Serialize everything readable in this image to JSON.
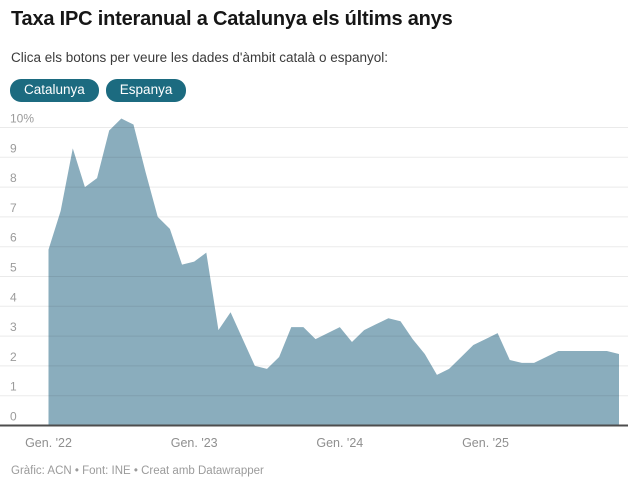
{
  "header": {
    "title": "Taxa IPC interanual a Catalunya els últims anys",
    "subtitle": "Clica els botons per veure les dades d'àmbit català o espanyol:"
  },
  "buttons": [
    {
      "label": "Catalunya",
      "active": true
    },
    {
      "label": "Espanya",
      "active": false
    }
  ],
  "footer": {
    "text": "Gràfic: ACN • Font: INE • Creat amb Datawrapper"
  },
  "colors": {
    "area_fill": "#8AADBD",
    "button_bg": "#1C6B80",
    "button_text": "#ffffff",
    "grid_line": "rgba(20,20,20,0.09)",
    "axis_baseline": "#4d4d4d",
    "tick_label": "#9b9b9b",
    "x_tick_label": "#8f8f8f",
    "title": "#161616",
    "subtitle": "#3b3b3b",
    "footer_text": "#9b9b9b"
  },
  "chart_data": {
    "type": "area",
    "title": "Taxa IPC interanual a Catalunya els últims anys",
    "unit": "%",
    "frequency": "monthly",
    "start_month": "Gen. 2022",
    "end_month": "Des. 2025",
    "series": [
      {
        "name": "Catalunya",
        "values": [
          5.9,
          7.2,
          9.3,
          8.0,
          8.3,
          9.9,
          10.3,
          10.1,
          8.5,
          7.0,
          6.6,
          5.4,
          5.5,
          5.8,
          3.2,
          3.8,
          2.9,
          2.0,
          1.9,
          2.3,
          3.3,
          3.3,
          2.9,
          3.1,
          3.3,
          2.8,
          3.2,
          3.4,
          3.6,
          3.5,
          2.9,
          2.4,
          1.7,
          1.9,
          2.3,
          2.7,
          2.9,
          3.1,
          2.2,
          2.1,
          2.1,
          2.3,
          2.5,
          2.5,
          2.5,
          2.5,
          2.5,
          2.4
        ]
      }
    ],
    "x_ticks": [
      {
        "label": "Gen. '22",
        "month_index": 0
      },
      {
        "label": "Gen. '23",
        "month_index": 12
      },
      {
        "label": "Gen. '24",
        "month_index": 24
      },
      {
        "label": "Gen. '25",
        "month_index": 36
      }
    ],
    "y_ticks": [
      0,
      1,
      2,
      3,
      4,
      5,
      6,
      7,
      8,
      9,
      10
    ],
    "y_top_tick_label": "10%",
    "ylim": [
      0,
      10.5
    ],
    "grid": true,
    "legend": false,
    "baseline_value": 0
  }
}
